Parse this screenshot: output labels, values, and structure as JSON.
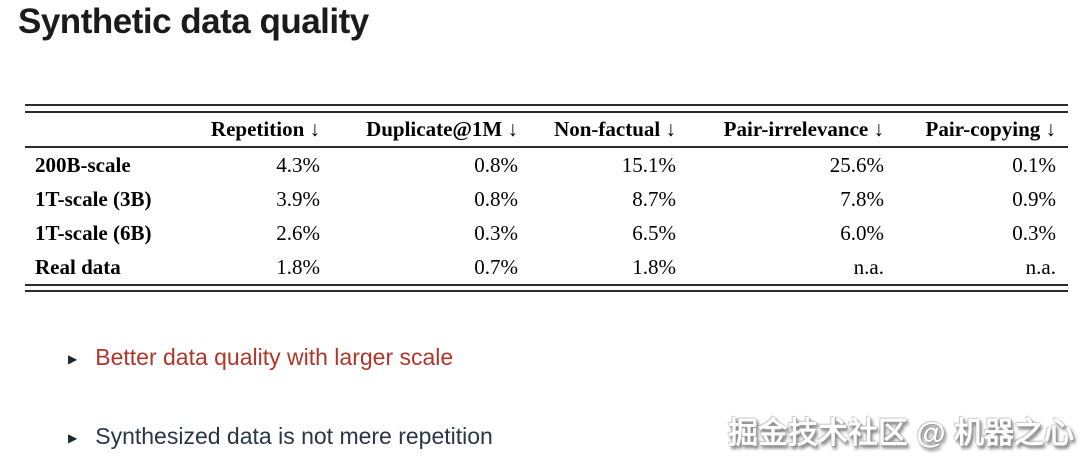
{
  "title": "Synthetic data quality",
  "table": {
    "columns": [
      "",
      "Repetition ↓",
      "Duplicate@1M ↓",
      "Non-factual ↓",
      "Pair-irrelevance ↓",
      "Pair-copying ↓"
    ],
    "rows": [
      {
        "label": "200B-scale",
        "values": [
          "4.3%",
          "0.8%",
          "15.1%",
          "25.6%",
          "0.1%"
        ]
      },
      {
        "label": "1T-scale (3B)",
        "values": [
          "3.9%",
          "0.8%",
          "8.7%",
          "7.8%",
          "0.9%"
        ]
      },
      {
        "label": "1T-scale (6B)",
        "values": [
          "2.6%",
          "0.3%",
          "6.5%",
          "6.0%",
          "0.3%"
        ]
      },
      {
        "label": "Real data",
        "values": [
          "1.8%",
          "0.7%",
          "1.8%",
          "n.a.",
          "n.a."
        ]
      }
    ]
  },
  "bullets": [
    {
      "marker": "▶",
      "text": "Better data quality with larger scale"
    },
    {
      "marker": "▶",
      "text": "Synthesized data is not mere repetition"
    }
  ],
  "watermark": "掘金技术社区 @ 机器之心",
  "colors": {
    "bullet_1_text": "#b0362a",
    "bullet_2_text": "#2a3647",
    "table_rule": "#2b2b2b",
    "title_text": "#1b1b1b",
    "watermark_text": "#ffffff"
  }
}
